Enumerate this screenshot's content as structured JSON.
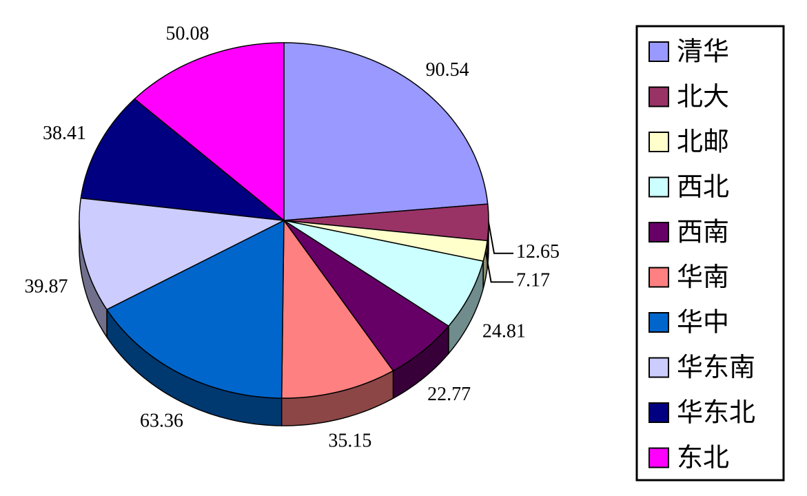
{
  "chart_data": {
    "type": "pie",
    "categories": [
      "清华",
      "北大",
      "北邮",
      "西北",
      "西南",
      "华南",
      "华中",
      "华东南",
      "华东北",
      "东北"
    ],
    "values": [
      90.54,
      12.65,
      7.17,
      24.81,
      22.77,
      35.15,
      63.36,
      39.87,
      38.41,
      50.08
    ],
    "colors": [
      "#9999ff",
      "#993366",
      "#ffffcc",
      "#ccffff",
      "#660066",
      "#ff8080",
      "#0066cc",
      "#ccccff",
      "#000080",
      "#ff00ff"
    ],
    "legend": "right"
  }
}
